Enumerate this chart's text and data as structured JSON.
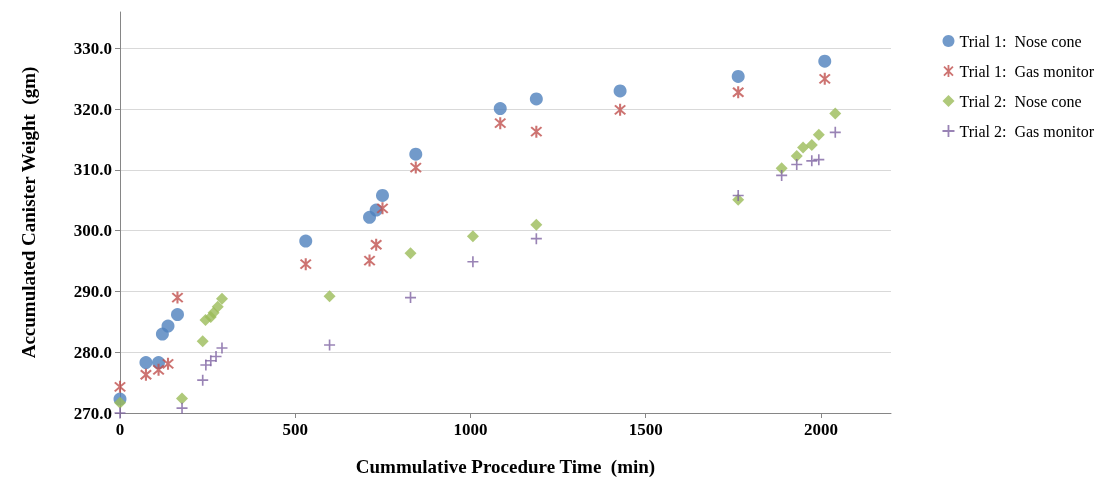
{
  "chart_data": {
    "type": "scatter",
    "xlabel": "Cummulative Procedure Time  (min)",
    "ylabel": "Accumulated Canister Weight  (gm)",
    "xlim": [
      0,
      2200
    ],
    "xticks": [
      0,
      500,
      1000,
      1500,
      2000
    ],
    "ylim": [
      270,
      336
    ],
    "yticks": [
      {
        "value": 270,
        "label": "270.0"
      },
      {
        "value": 280,
        "label": "280.0"
      },
      {
        "value": 290,
        "label": "290.0"
      },
      {
        "value": 300,
        "label": "300.0"
      },
      {
        "value": 310,
        "label": "310.0"
      },
      {
        "value": 320,
        "label": "320.0"
      },
      {
        "value": 330,
        "label": "330.0"
      }
    ],
    "grid": "y",
    "legend": "right",
    "series": [
      {
        "name": "Trial 1:  Nose cone",
        "color": "#4f81bd",
        "marker": "circle",
        "x": [
          0,
          74,
          110,
          121,
          137,
          164,
          530,
          712,
          731,
          749,
          844,
          1085,
          1188,
          1427,
          1764,
          2011
        ],
        "values": [
          272.3,
          278.3,
          278.3,
          283.0,
          284.3,
          286.2,
          298.3,
          302.2,
          303.4,
          305.8,
          312.6,
          320.1,
          321.7,
          323.0,
          325.4,
          327.9
        ]
      },
      {
        "name": "Trial 1:  Gas monitor",
        "color": "#c0504d",
        "marker": "cross",
        "x": [
          0,
          74,
          110,
          137,
          164,
          530,
          712,
          731,
          749,
          844,
          1085,
          1188,
          1427,
          1764,
          2011
        ],
        "values": [
          274.3,
          276.3,
          277.1,
          278.1,
          289.0,
          294.5,
          295.1,
          297.7,
          303.7,
          310.4,
          317.7,
          316.3,
          319.9,
          322.8,
          325.0
        ]
      },
      {
        "name": "Trial 2:  Nose cone",
        "color": "#9bbb59",
        "marker": "diamond",
        "x": [
          0,
          177,
          236,
          244,
          259,
          267,
          279,
          291,
          598,
          829,
          1007,
          1188,
          1764,
          1888,
          1931,
          1949,
          1974,
          1994,
          2041
        ],
        "values": [
          271.7,
          272.4,
          281.8,
          285.3,
          285.8,
          286.5,
          287.5,
          288.8,
          289.2,
          296.3,
          299.1,
          301.0,
          305.1,
          310.3,
          312.3,
          313.7,
          314.1,
          315.8,
          319.3
        ]
      },
      {
        "name": "Trial 2:  Gas monitor",
        "color": "#8064a2",
        "marker": "cross",
        "x": [
          0,
          177,
          236,
          245,
          259,
          274,
          291,
          598,
          829,
          1007,
          1188,
          1764,
          1888,
          1931,
          1974,
          1994,
          2041
        ],
        "values": [
          270.0,
          270.8,
          275.4,
          277.9,
          278.6,
          279.3,
          280.7,
          281.2,
          289.0,
          294.9,
          298.7,
          305.8,
          309.1,
          310.9,
          311.5,
          311.7,
          316.2
        ]
      }
    ]
  }
}
